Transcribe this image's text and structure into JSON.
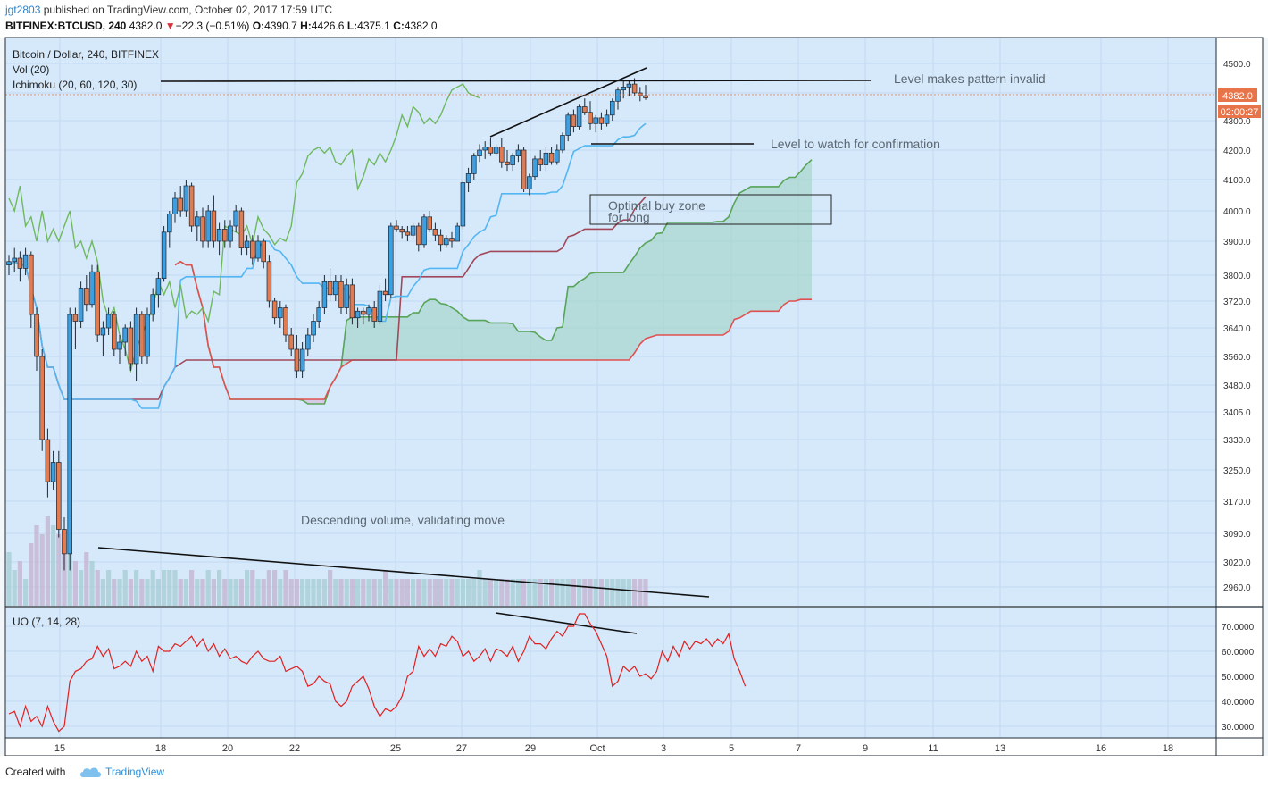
{
  "header": {
    "user": "jgt2803",
    "published": "published on TradingView.com, October 02, 2017 17:59 UTC",
    "symbol": "BITFINEX:BTCUSD, 240",
    "last": "4382.0",
    "change_arrow": "▼",
    "change": "−22.3 (−0.51%)",
    "open_label": "O:",
    "open": "4390.7",
    "high_label": "H:",
    "high": "4426.6",
    "low_label": "L:",
    "low": "4375.1",
    "close_label": "C:",
    "close": "4382.0"
  },
  "footer": {
    "created": "Created with",
    "brand": "TradingView"
  },
  "colors": {
    "background": "#d6e9fb",
    "up": "#3e9fe0",
    "down": "#e07b52",
    "tenkan": "#53b6f2",
    "kijun": "#a0485a",
    "spanA": "#58a458",
    "spanB": "#e05050",
    "uo": "#e02020",
    "price_tag": "#e8744a"
  },
  "chart_data": [
    {
      "type": "candlestick",
      "panel": "price",
      "title": "Bitcoin / Dollar, 240, BITFINEX",
      "indicators": [
        "Vol (20)",
        "Ichimoku (20, 60, 120, 30)"
      ],
      "ylim": [
        2900,
        4560
      ],
      "y_tick_labels": [
        "4500.0",
        "4400.0",
        "4300.0",
        "4200.0",
        "4100.0",
        "4000.0",
        "3900.0",
        "3800.0",
        "3720.0",
        "3640.0",
        "3560.0",
        "3480.0",
        "3405.0",
        "3330.0",
        "3250.0",
        "3170.0",
        "3090.0",
        "3020.0",
        "2960.0"
      ],
      "last_price_tag": "4382.0",
      "countdown_tag": "02:00:27",
      "candles": [
        [
          3830,
          3860,
          3800,
          3840
        ],
        [
          3840,
          3880,
          3810,
          3850
        ],
        [
          3850,
          3870,
          3780,
          3820
        ],
        [
          3820,
          3880,
          3800,
          3860
        ],
        [
          3860,
          3870,
          3640,
          3680
        ],
        [
          3680,
          3700,
          3520,
          3560
        ],
        [
          3560,
          3580,
          3300,
          3330
        ],
        [
          3330,
          3360,
          3180,
          3220
        ],
        [
          3220,
          3300,
          3200,
          3270
        ],
        [
          3270,
          3300,
          3080,
          3100
        ],
        [
          3100,
          3130,
          3000,
          3040
        ],
        [
          3040,
          3700,
          3000,
          3680
        ],
        [
          3680,
          3700,
          3580,
          3660
        ],
        [
          3660,
          3780,
          3640,
          3760
        ],
        [
          3760,
          3800,
          3690,
          3710
        ],
        [
          3710,
          3830,
          3700,
          3810
        ],
        [
          3810,
          3830,
          3600,
          3620
        ],
        [
          3620,
          3660,
          3560,
          3640
        ],
        [
          3640,
          3700,
          3620,
          3680
        ],
        [
          3680,
          3690,
          3560,
          3580
        ],
        [
          3580,
          3620,
          3540,
          3600
        ],
        [
          3600,
          3650,
          3560,
          3640
        ],
        [
          3640,
          3660,
          3520,
          3540
        ],
        [
          3540,
          3700,
          3490,
          3680
        ],
        [
          3680,
          3690,
          3540,
          3560
        ],
        [
          3560,
          3700,
          3540,
          3680
        ],
        [
          3680,
          3760,
          3660,
          3740
        ],
        [
          3740,
          3810,
          3700,
          3790
        ],
        [
          3790,
          3950,
          3780,
          3930
        ],
        [
          3930,
          4000,
          3880,
          3990
        ],
        [
          3990,
          4060,
          3960,
          4040
        ],
        [
          4040,
          4080,
          3980,
          4000
        ],
        [
          4000,
          4100,
          3980,
          4080
        ],
        [
          4080,
          4090,
          3930,
          3950
        ],
        [
          3950,
          4000,
          3900,
          3980
        ],
        [
          3980,
          4010,
          3880,
          3900
        ],
        [
          3900,
          4020,
          3880,
          4000
        ],
        [
          4000,
          4050,
          3880,
          3900
        ],
        [
          3900,
          3960,
          3860,
          3940
        ],
        [
          3940,
          3970,
          3880,
          3900
        ],
        [
          3900,
          3970,
          3880,
          3950
        ],
        [
          3950,
          4020,
          3930,
          4000
        ],
        [
          4000,
          4010,
          3860,
          3880
        ],
        [
          3880,
          3920,
          3860,
          3900
        ],
        [
          3900,
          3920,
          3830,
          3850
        ],
        [
          3850,
          3920,
          3840,
          3900
        ],
        [
          3900,
          3910,
          3820,
          3840
        ],
        [
          3840,
          3860,
          3700,
          3720
        ],
        [
          3720,
          3730,
          3650,
          3670
        ],
        [
          3670,
          3720,
          3640,
          3700
        ],
        [
          3700,
          3710,
          3600,
          3620
        ],
        [
          3620,
          3640,
          3560,
          3580
        ],
        [
          3580,
          3620,
          3500,
          3520
        ],
        [
          3520,
          3600,
          3500,
          3580
        ],
        [
          3580,
          3640,
          3560,
          3620
        ],
        [
          3620,
          3680,
          3600,
          3660
        ],
        [
          3660,
          3720,
          3640,
          3700
        ],
        [
          3700,
          3800,
          3680,
          3780
        ],
        [
          3780,
          3820,
          3720,
          3740
        ],
        [
          3740,
          3800,
          3720,
          3780
        ],
        [
          3780,
          3800,
          3680,
          3700
        ],
        [
          3700,
          3790,
          3680,
          3770
        ],
        [
          3770,
          3790,
          3650,
          3670
        ],
        [
          3670,
          3700,
          3640,
          3690
        ],
        [
          3690,
          3700,
          3650,
          3680
        ],
        [
          3680,
          3710,
          3660,
          3700
        ],
        [
          3700,
          3720,
          3640,
          3660
        ],
        [
          3660,
          3770,
          3650,
          3750
        ],
        [
          3750,
          3790,
          3720,
          3740
        ],
        [
          3740,
          3960,
          3730,
          3950
        ],
        [
          3950,
          3970,
          3930,
          3940
        ],
        [
          3940,
          3950,
          3910,
          3930
        ],
        [
          3930,
          3950,
          3900,
          3920
        ],
        [
          3920,
          3960,
          3910,
          3950
        ],
        [
          3950,
          3960,
          3870,
          3890
        ],
        [
          3890,
          3990,
          3880,
          3980
        ],
        [
          3980,
          4000,
          3930,
          3940
        ],
        [
          3940,
          3960,
          3900,
          3920
        ],
        [
          3920,
          3940,
          3870,
          3890
        ],
        [
          3890,
          3920,
          3880,
          3910
        ],
        [
          3910,
          3930,
          3880,
          3900
        ],
        [
          3900,
          3960,
          3900,
          3950
        ],
        [
          3950,
          4100,
          3940,
          4090
        ],
        [
          4090,
          4140,
          4060,
          4120
        ],
        [
          4120,
          4190,
          4100,
          4180
        ],
        [
          4180,
          4220,
          4160,
          4200
        ],
        [
          4200,
          4230,
          4170,
          4210
        ],
        [
          4210,
          4240,
          4180,
          4190
        ],
        [
          4190,
          4220,
          4180,
          4210
        ],
        [
          4210,
          4240,
          4140,
          4160
        ],
        [
          4160,
          4200,
          4130,
          4150
        ],
        [
          4150,
          4190,
          4130,
          4180
        ],
        [
          4180,
          4220,
          4160,
          4200
        ],
        [
          4200,
          4210,
          4060,
          4070
        ],
        [
          4070,
          4120,
          4050,
          4110
        ],
        [
          4110,
          4180,
          4100,
          4170
        ],
        [
          4170,
          4200,
          4130,
          4150
        ],
        [
          4150,
          4210,
          4130,
          4190
        ],
        [
          4190,
          4210,
          4150,
          4160
        ],
        [
          4160,
          4220,
          4150,
          4200
        ],
        [
          4200,
          4260,
          4190,
          4250
        ],
        [
          4250,
          4330,
          4230,
          4320
        ],
        [
          4320,
          4340,
          4260,
          4280
        ],
        [
          4280,
          4360,
          4270,
          4350
        ],
        [
          4350,
          4380,
          4320,
          4330
        ],
        [
          4330,
          4370,
          4270,
          4290
        ],
        [
          4290,
          4320,
          4260,
          4310
        ],
        [
          4310,
          4330,
          4270,
          4290
        ],
        [
          4290,
          4340,
          4280,
          4320
        ],
        [
          4320,
          4380,
          4300,
          4370
        ],
        [
          4370,
          4420,
          4340,
          4410
        ],
        [
          4410,
          4440,
          4380,
          4420
        ],
        [
          4420,
          4440,
          4390,
          4430
        ],
        [
          4430,
          4450,
          4390,
          4400
        ],
        [
          4400,
          4420,
          4370,
          4390
        ],
        [
          4390,
          4427,
          4375,
          4382
        ]
      ],
      "volume": [
        6,
        4,
        5,
        3,
        7,
        9,
        8,
        10,
        9,
        8,
        7,
        6,
        5,
        4,
        6,
        5,
        4,
        3,
        4,
        3,
        3,
        4,
        3,
        4,
        3,
        3,
        4,
        3,
        4,
        4,
        4,
        3,
        3,
        4,
        3,
        3,
        4,
        3,
        4,
        3,
        3,
        3,
        3,
        4,
        4,
        3,
        3,
        4,
        4,
        3,
        4,
        3,
        3,
        3,
        3,
        3,
        3,
        3,
        4,
        3,
        3,
        3,
        3,
        3,
        3,
        3,
        3,
        3,
        4,
        3,
        3,
        3,
        3,
        3,
        3,
        3,
        3,
        3,
        3,
        3,
        3,
        3,
        3,
        3,
        3,
        4,
        3,
        3,
        3,
        3,
        3,
        3,
        3,
        3,
        3,
        3,
        3,
        3,
        3,
        3,
        3,
        3,
        3,
        3,
        3,
        3,
        3,
        3,
        3,
        3,
        3,
        3,
        3,
        3,
        3,
        3,
        3
      ]
    },
    {
      "type": "line",
      "panel": "oscillator",
      "title": "UO (7, 14, 28)",
      "ylim": [
        27,
        77
      ],
      "y_tick_labels": [
        "70.0000",
        "60.0000",
        "50.0000",
        "40.0000",
        "30.0000"
      ],
      "series": [
        {
          "values": [
            35,
            36,
            30,
            38,
            32,
            34,
            30,
            38,
            32,
            28,
            30,
            48,
            52,
            53,
            56,
            57,
            62,
            58,
            61,
            53,
            54,
            56,
            54,
            60,
            56,
            58,
            52,
            62,
            60,
            60,
            63,
            62,
            64,
            66,
            62,
            65,
            60,
            63,
            58,
            61,
            57,
            58,
            56,
            55,
            58,
            60,
            57,
            56,
            56,
            58,
            52,
            53,
            54,
            52,
            46,
            47,
            50,
            48,
            47,
            40,
            38,
            40,
            46,
            48,
            50,
            45,
            38,
            34,
            37,
            36,
            38,
            42,
            50,
            52,
            62,
            58,
            61,
            58,
            63,
            62,
            66,
            64,
            58,
            60,
            56,
            58,
            61,
            56,
            61,
            60,
            58,
            62,
            56,
            60,
            66,
            63,
            63,
            61,
            65,
            68,
            66,
            70,
            70,
            75,
            75,
            71,
            68,
            63,
            58,
            46,
            48,
            54,
            52,
            54,
            50,
            51,
            49,
            52,
            60,
            56,
            62,
            58,
            64,
            61,
            64,
            63,
            65,
            62,
            65,
            63,
            67,
            57,
            52,
            46
          ]
        }
      ]
    },
    {
      "type": "axis",
      "x_tick_labels": [
        "15",
        "18",
        "20",
        "22",
        "25",
        "27",
        "29",
        "Oct",
        "3",
        "5",
        "7",
        "9",
        "11",
        "13",
        "16",
        "18"
      ]
    }
  ],
  "annotations": {
    "level_invalid": "Level makes pattern invalid",
    "level_watch": "Level to watch for confirmation",
    "buy_zone_line1": "Optimal buy zone",
    "buy_zone_line2": "for long",
    "volume_note": "Descending volume, validating move"
  }
}
